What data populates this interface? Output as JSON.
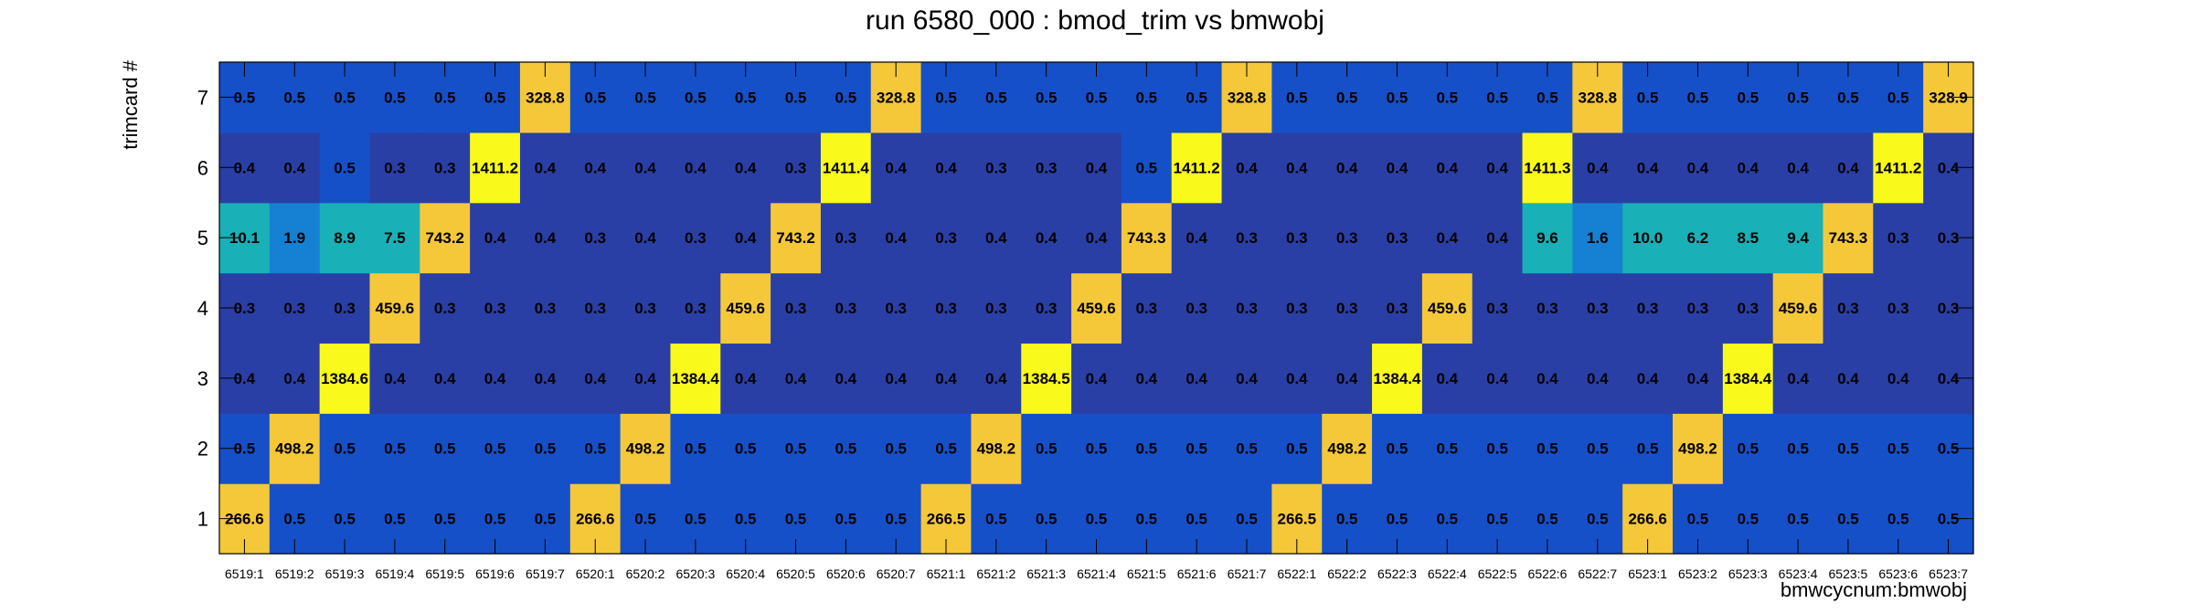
{
  "chart_data": {
    "type": "heatmap",
    "title": "run 6580_000 : bmod_trim vs bmwobj",
    "xlabel": "bmwcycnum:bmwobj",
    "ylabel": "trimcard #",
    "x_categories": [
      "6519:1",
      "6519:2",
      "6519:3",
      "6519:4",
      "6519:5",
      "6519:6",
      "6519:7",
      "6520:1",
      "6520:2",
      "6520:3",
      "6520:4",
      "6520:5",
      "6520:6",
      "6520:7",
      "6521:1",
      "6521:2",
      "6521:3",
      "6521:4",
      "6521:5",
      "6521:6",
      "6521:7",
      "6522:1",
      "6522:2",
      "6522:3",
      "6522:4",
      "6522:5",
      "6522:6",
      "6522:7",
      "6523:1",
      "6523:2",
      "6523:3",
      "6523:4",
      "6523:5",
      "6523:6",
      "6523:7"
    ],
    "y_categories": [
      "1",
      "2",
      "3",
      "4",
      "5",
      "6",
      "7"
    ],
    "values": [
      [
        "266.6",
        "0.5",
        "0.5",
        "0.5",
        "0.5",
        "0.5",
        "0.5",
        "266.6",
        "0.5",
        "0.5",
        "0.5",
        "0.5",
        "0.5",
        "0.5",
        "266.5",
        "0.5",
        "0.5",
        "0.5",
        "0.5",
        "0.5",
        "0.5",
        "266.5",
        "0.5",
        "0.5",
        "0.5",
        "0.5",
        "0.5",
        "0.5",
        "266.6",
        "0.5",
        "0.5",
        "0.5",
        "0.5",
        "0.5",
        "0.5"
      ],
      [
        "0.5",
        "498.2",
        "0.5",
        "0.5",
        "0.5",
        "0.5",
        "0.5",
        "0.5",
        "498.2",
        "0.5",
        "0.5",
        "0.5",
        "0.5",
        "0.5",
        "0.5",
        "498.2",
        "0.5",
        "0.5",
        "0.5",
        "0.5",
        "0.5",
        "0.5",
        "498.2",
        "0.5",
        "0.5",
        "0.5",
        "0.5",
        "0.5",
        "0.5",
        "498.2",
        "0.5",
        "0.5",
        "0.5",
        "0.5",
        "0.5"
      ],
      [
        "0.4",
        "0.4",
        "1384.6",
        "0.4",
        "0.4",
        "0.4",
        "0.4",
        "0.4",
        "0.4",
        "1384.4",
        "0.4",
        "0.4",
        "0.4",
        "0.4",
        "0.4",
        "0.4",
        "1384.5",
        "0.4",
        "0.4",
        "0.4",
        "0.4",
        "0.4",
        "0.4",
        "1384.4",
        "0.4",
        "0.4",
        "0.4",
        "0.4",
        "0.4",
        "0.4",
        "1384.4",
        "0.4",
        "0.4",
        "0.4",
        "0.4"
      ],
      [
        "0.3",
        "0.3",
        "0.3",
        "459.6",
        "0.3",
        "0.3",
        "0.3",
        "0.3",
        "0.3",
        "0.3",
        "459.6",
        "0.3",
        "0.3",
        "0.3",
        "0.3",
        "0.3",
        "0.3",
        "459.6",
        "0.3",
        "0.3",
        "0.3",
        "0.3",
        "0.3",
        "0.3",
        "459.6",
        "0.3",
        "0.3",
        "0.3",
        "0.3",
        "0.3",
        "0.3",
        "459.6",
        "0.3",
        "0.3",
        "0.3"
      ],
      [
        "10.1",
        "1.9",
        "8.9",
        "7.5",
        "743.2",
        "0.4",
        "0.4",
        "0.3",
        "0.4",
        "0.3",
        "0.4",
        "743.2",
        "0.3",
        "0.4",
        "0.3",
        "0.4",
        "0.4",
        "0.4",
        "743.3",
        "0.4",
        "0.3",
        "0.3",
        "0.3",
        "0.3",
        "0.4",
        "0.4",
        "9.6",
        "1.6",
        "10.0",
        "6.2",
        "8.5",
        "9.4",
        "743.3",
        "0.3",
        "0.3"
      ],
      [
        "0.4",
        "0.4",
        "0.5",
        "0.3",
        "0.3",
        "1411.2",
        "0.4",
        "0.4",
        "0.4",
        "0.4",
        "0.4",
        "0.3",
        "1411.4",
        "0.4",
        "0.4",
        "0.3",
        "0.3",
        "0.4",
        "0.5",
        "1411.2",
        "0.4",
        "0.4",
        "0.4",
        "0.4",
        "0.4",
        "0.4",
        "1411.3",
        "0.4",
        "0.4",
        "0.4",
        "0.4",
        "0.4",
        "0.4",
        "1411.2",
        "0.4"
      ],
      [
        "0.5",
        "0.5",
        "0.5",
        "0.5",
        "0.5",
        "0.5",
        "328.8",
        "0.5",
        "0.5",
        "0.5",
        "0.5",
        "0.5",
        "0.5",
        "328.8",
        "0.5",
        "0.5",
        "0.5",
        "0.5",
        "0.5",
        "0.5",
        "328.8",
        "0.5",
        "0.5",
        "0.5",
        "0.5",
        "0.5",
        "0.5",
        "328.8",
        "0.5",
        "0.5",
        "0.5",
        "0.5",
        "0.5",
        "0.5",
        "328.9"
      ]
    ],
    "colors": {
      "high": "#f9f91b",
      "upper": "#f5c83a",
      "mid": "#19b0b7",
      "low_mid": "#1680d2",
      "low": "#1650c8",
      "lowest": "#2a3fa5",
      "frame": "#000000"
    },
    "grid": false,
    "legend": "none"
  }
}
